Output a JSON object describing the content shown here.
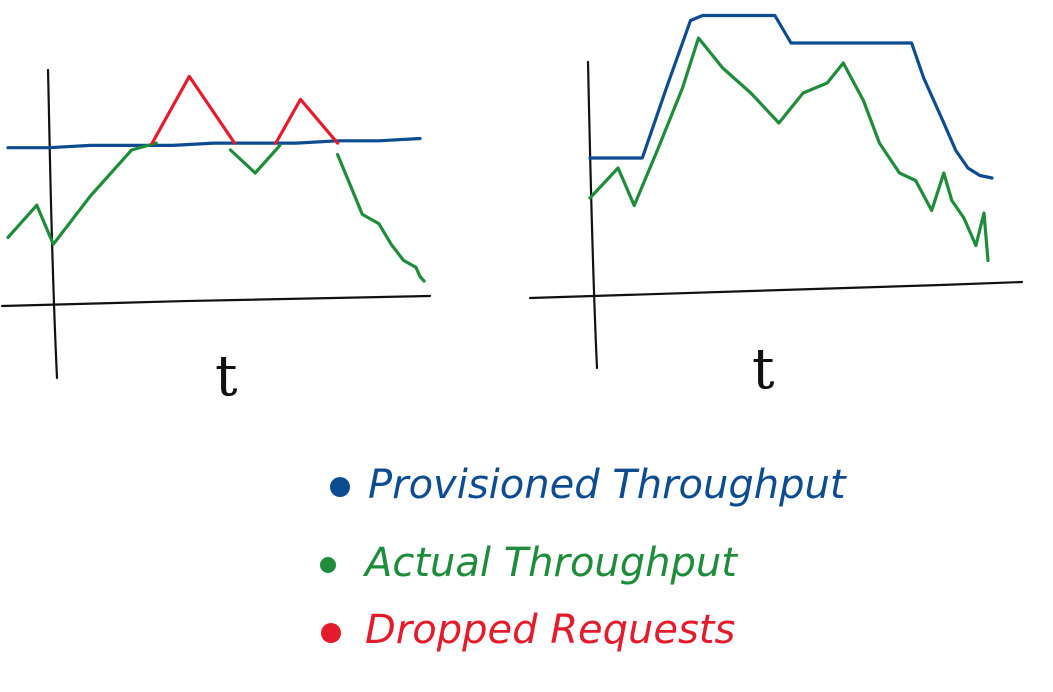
{
  "colors": {
    "provisioned": "#0e4c92",
    "actual": "#1e8c3a",
    "dropped": "#e31b2b",
    "axis": "#111111"
  },
  "legend": {
    "items": [
      {
        "key": "provisioned",
        "label": "Provisioned Throughput"
      },
      {
        "key": "actual",
        "label": "Actual Throughput"
      },
      {
        "key": "dropped",
        "label": "Dropped Requests"
      }
    ]
  },
  "chart_data": [
    {
      "type": "line",
      "xlabel": "t",
      "ylabel": "",
      "xlim": [
        0,
        100
      ],
      "ylim": [
        0,
        100
      ],
      "series": [
        {
          "key": "provisioned",
          "x": [
            0,
            10,
            20,
            30,
            40,
            50,
            60,
            70,
            80,
            90,
            100
          ],
          "y": [
            61,
            61,
            62,
            62,
            62,
            63,
            63,
            63,
            64,
            64,
            65
          ]
        },
        {
          "key": "actual",
          "x": [
            0,
            7,
            11,
            20,
            30,
            36
          ],
          "y": [
            22,
            36,
            19,
            40,
            60,
            63
          ]
        },
        {
          "key": "actual",
          "x": [
            54,
            60,
            66
          ],
          "y": [
            60,
            50,
            62
          ]
        },
        {
          "key": "actual",
          "x": [
            80,
            83,
            86,
            90,
            93,
            96,
            99,
            100,
            101
          ],
          "y": [
            58,
            45,
            32,
            28,
            19,
            12,
            9,
            5,
            3
          ]
        },
        {
          "key": "dropped",
          "x": [
            35,
            44,
            55
          ],
          "y": [
            63,
            92,
            63
          ]
        },
        {
          "key": "dropped",
          "x": [
            65,
            71,
            80
          ],
          "y": [
            63,
            82,
            63
          ]
        }
      ]
    },
    {
      "type": "line",
      "xlabel": "t",
      "ylabel": "",
      "xlim": [
        0,
        100
      ],
      "ylim": [
        0,
        100
      ],
      "series": [
        {
          "key": "provisioned",
          "x": [
            0,
            13,
            19,
            25,
            28,
            46,
            50,
            80,
            83,
            88,
            91,
            94,
            97,
            100
          ],
          "y": [
            44,
            44,
            72,
            99,
            101,
            101,
            90,
            90,
            76,
            58,
            47,
            40,
            37,
            36
          ]
        },
        {
          "key": "actual",
          "x": [
            0,
            7,
            11,
            17,
            23,
            27,
            33,
            40,
            47,
            53,
            59,
            63,
            68,
            72,
            77,
            81,
            85,
            88,
            90,
            93,
            96,
            98,
            99
          ],
          "y": [
            28,
            40,
            25,
            48,
            72,
            92,
            80,
            70,
            58,
            70,
            74,
            82,
            67,
            50,
            38,
            35,
            23,
            38,
            27,
            20,
            9,
            22,
            3
          ]
        }
      ]
    }
  ]
}
